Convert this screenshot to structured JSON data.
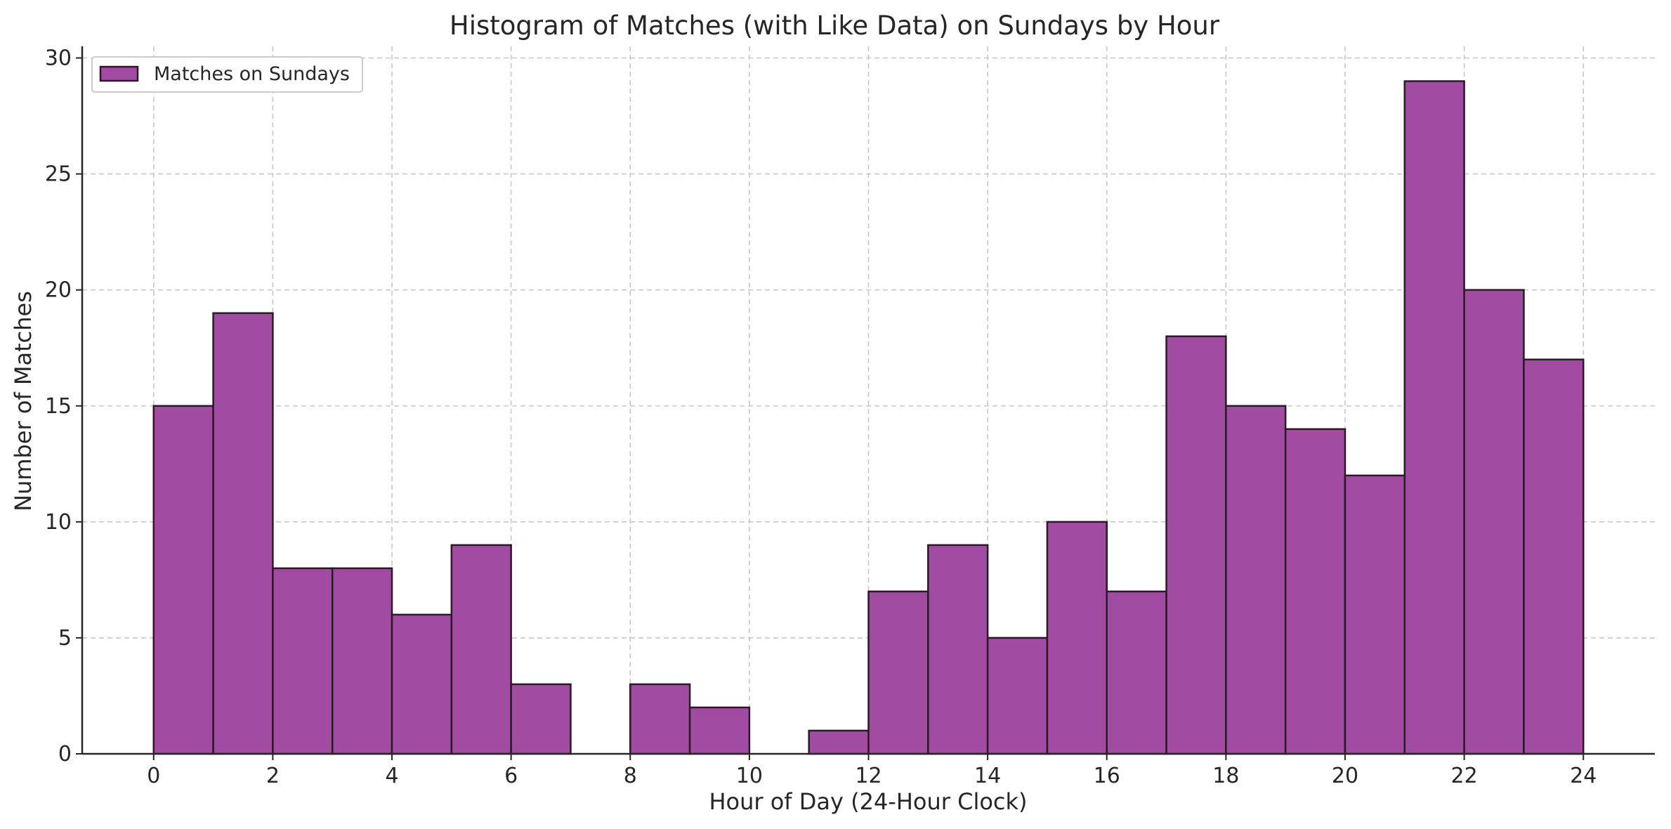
{
  "chart_data": {
    "type": "bar",
    "title": "Histogram of Matches (with Like Data) on Sundays by Hour",
    "xlabel": "Hour of Day (24-Hour Clock)",
    "ylabel": "Number of Matches",
    "bin_edges": [
      0,
      1,
      2,
      3,
      4,
      5,
      6,
      7,
      8,
      9,
      10,
      11,
      12,
      13,
      14,
      15,
      16,
      17,
      18,
      19,
      20,
      21,
      22,
      23,
      24
    ],
    "values": [
      15,
      19,
      8,
      8,
      6,
      9,
      3,
      0,
      3,
      2,
      0,
      1,
      7,
      9,
      5,
      10,
      7,
      18,
      15,
      14,
      12,
      29,
      20,
      17
    ],
    "xlim": [
      -1.2,
      25.2
    ],
    "ylim": [
      0,
      30.5
    ],
    "xticks": [
      0,
      2,
      4,
      6,
      8,
      10,
      12,
      14,
      16,
      18,
      20,
      22,
      24
    ],
    "xtick_labels": [
      "0",
      "2",
      "4",
      "6",
      "8",
      "10",
      "12",
      "14",
      "16",
      "18",
      "20",
      "22",
      "24"
    ],
    "yticks": [
      0,
      5,
      10,
      15,
      20,
      25,
      30
    ],
    "ytick_labels": [
      "0",
      "5",
      "10",
      "15",
      "20",
      "25",
      "30"
    ],
    "series": [
      {
        "name": "Matches on Sundays",
        "color": "#a24ba3"
      }
    ],
    "grid": true,
    "legend_position": "top-left"
  }
}
